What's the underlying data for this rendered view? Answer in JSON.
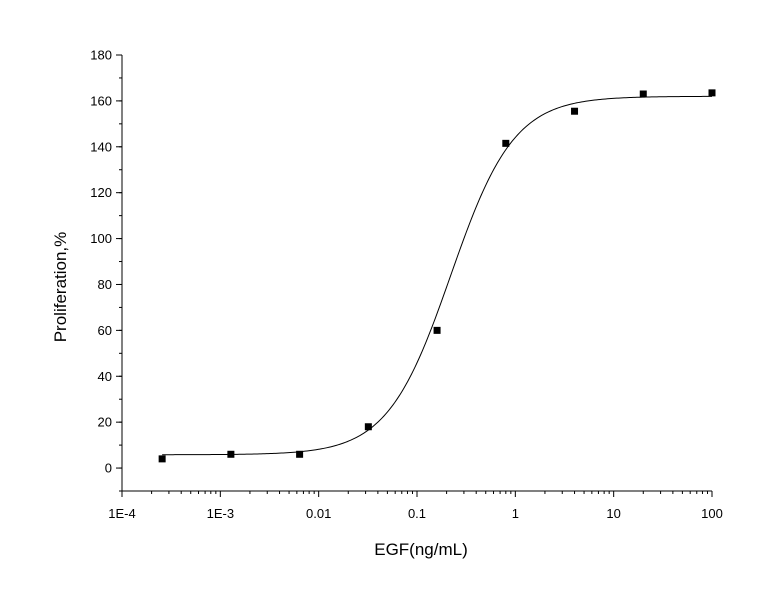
{
  "chart_data": {
    "type": "scatter",
    "xlabel": "EGF(ng/mL)",
    "ylabel": "Proliferation,%",
    "x_scale": "log10",
    "xlim": [
      0.0001,
      100
    ],
    "ylim": [
      -10,
      180
    ],
    "x_ticks": [
      0.0001,
      0.001,
      0.01,
      0.1,
      1,
      10,
      100
    ],
    "x_tick_labels": [
      "1E-4",
      "1E-3",
      "0.01",
      "0.1",
      "1",
      "10",
      "100"
    ],
    "y_ticks": [
      0,
      20,
      40,
      60,
      80,
      100,
      120,
      140,
      160,
      180
    ],
    "y_tick_labels": [
      "0",
      "20",
      "40",
      "60",
      "80",
      "100",
      "120",
      "140",
      "160",
      "180"
    ],
    "grid": false,
    "legend": "none",
    "series": [
      {
        "kind": "points",
        "marker": "square",
        "color": "#000000",
        "x": [
          0.000256,
          0.00128,
          0.0064,
          0.032,
          0.16,
          0.8,
          4,
          20,
          100
        ],
        "y": [
          4,
          6,
          6,
          18,
          60,
          141.5,
          155.5,
          163,
          163.5
        ]
      },
      {
        "kind": "fit-curve",
        "model": "4-parameter logistic",
        "color": "#000000",
        "bottom": 5.8,
        "top": 162,
        "ec50": 0.22,
        "hill": 1.35
      }
    ]
  }
}
